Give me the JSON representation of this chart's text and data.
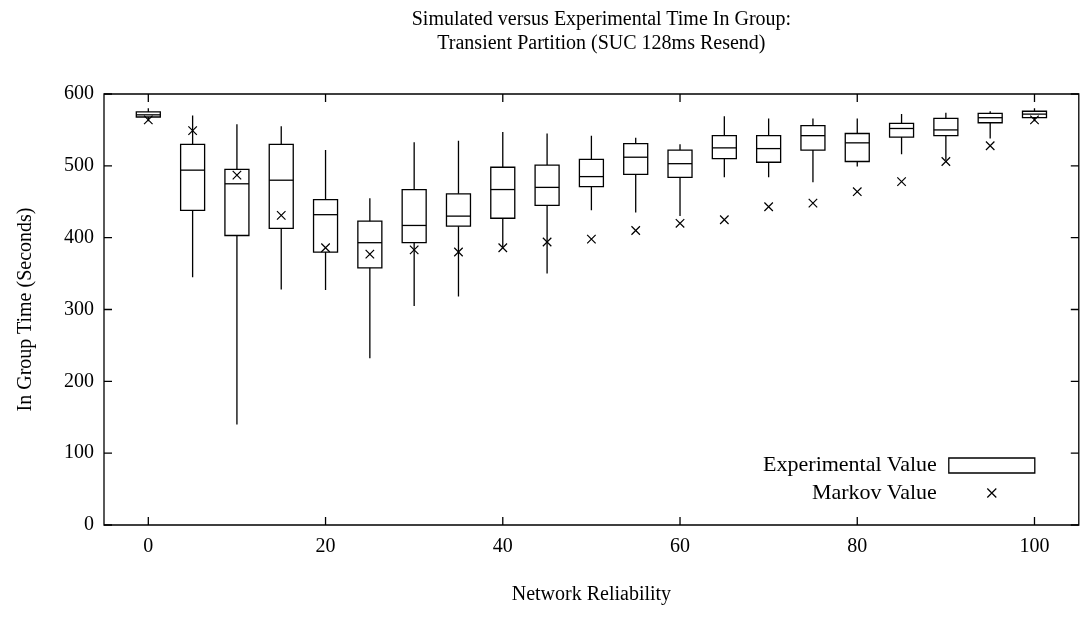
{
  "chart_data": {
    "type": "box",
    "title": "Simulated versus Experimental Time In Group:\nTransient Partition (SUC 128ms Resend)",
    "xlabel": "Network Reliability",
    "ylabel": "In Group Time (Seconds)",
    "x": [
      0,
      5,
      10,
      15,
      20,
      25,
      30,
      35,
      40,
      45,
      50,
      55,
      60,
      65,
      70,
      75,
      80,
      85,
      90,
      95,
      100
    ],
    "xlim": [
      -5,
      105
    ],
    "xticks": [
      0,
      20,
      40,
      60,
      80,
      100
    ],
    "ylim": [
      0,
      600
    ],
    "yticks": [
      0,
      100,
      200,
      300,
      400,
      500,
      600
    ],
    "grid": false,
    "legend": "bottom right",
    "series": [
      {
        "name": "Experimental Value",
        "color": "#000000",
        "boxes": [
          {
            "low": 562,
            "q1": 568,
            "median": 571,
            "q3": 575,
            "high": 580
          },
          {
            "low": 345,
            "q1": 438,
            "median": 494,
            "q3": 530,
            "high": 570
          },
          {
            "low": 140,
            "q1": 403,
            "median": 475,
            "q3": 495,
            "high": 558
          },
          {
            "low": 328,
            "q1": 413,
            "median": 480,
            "q3": 530,
            "high": 555
          },
          {
            "low": 327,
            "q1": 380,
            "median": 432,
            "q3": 453,
            "high": 522
          },
          {
            "low": 232,
            "q1": 358,
            "median": 393,
            "q3": 423,
            "high": 455
          },
          {
            "low": 305,
            "q1": 393,
            "median": 417,
            "q3": 467,
            "high": 533
          },
          {
            "low": 318,
            "q1": 416,
            "median": 430,
            "q3": 461,
            "high": 535
          },
          {
            "low": 386,
            "q1": 427,
            "median": 467,
            "q3": 498,
            "high": 547
          },
          {
            "low": 350,
            "q1": 445,
            "median": 470,
            "q3": 501,
            "high": 545
          },
          {
            "low": 438,
            "q1": 471,
            "median": 485,
            "q3": 509,
            "high": 542
          },
          {
            "low": 435,
            "q1": 488,
            "median": 512,
            "q3": 531,
            "high": 539
          },
          {
            "low": 430,
            "q1": 484,
            "median": 503,
            "q3": 522,
            "high": 530
          },
          {
            "low": 484,
            "q1": 510,
            "median": 525,
            "q3": 542,
            "high": 569
          },
          {
            "low": 484,
            "q1": 505,
            "median": 524,
            "q3": 542,
            "high": 566
          },
          {
            "low": 477,
            "q1": 522,
            "median": 542,
            "q3": 556,
            "high": 566
          },
          {
            "low": 499,
            "q1": 506,
            "median": 532,
            "q3": 545,
            "high": 566
          },
          {
            "low": 516,
            "q1": 540,
            "median": 552,
            "q3": 559,
            "high": 572
          },
          {
            "low": 508,
            "q1": 542,
            "median": 550,
            "q3": 566,
            "high": 574
          },
          {
            "low": 538,
            "q1": 560,
            "median": 567,
            "q3": 573,
            "high": 576
          },
          {
            "low": 562,
            "q1": 567,
            "median": 572,
            "q3": 576,
            "high": 580
          }
        ]
      },
      {
        "name": "Markov Value",
        "type": "scatter",
        "color": "#000000",
        "marker": "cross",
        "values": [
          564,
          549,
          487,
          431,
          386,
          377,
          383,
          380,
          386,
          394,
          398,
          410,
          420,
          425,
          443,
          448,
          464,
          478,
          506,
          528,
          564
        ]
      }
    ]
  }
}
